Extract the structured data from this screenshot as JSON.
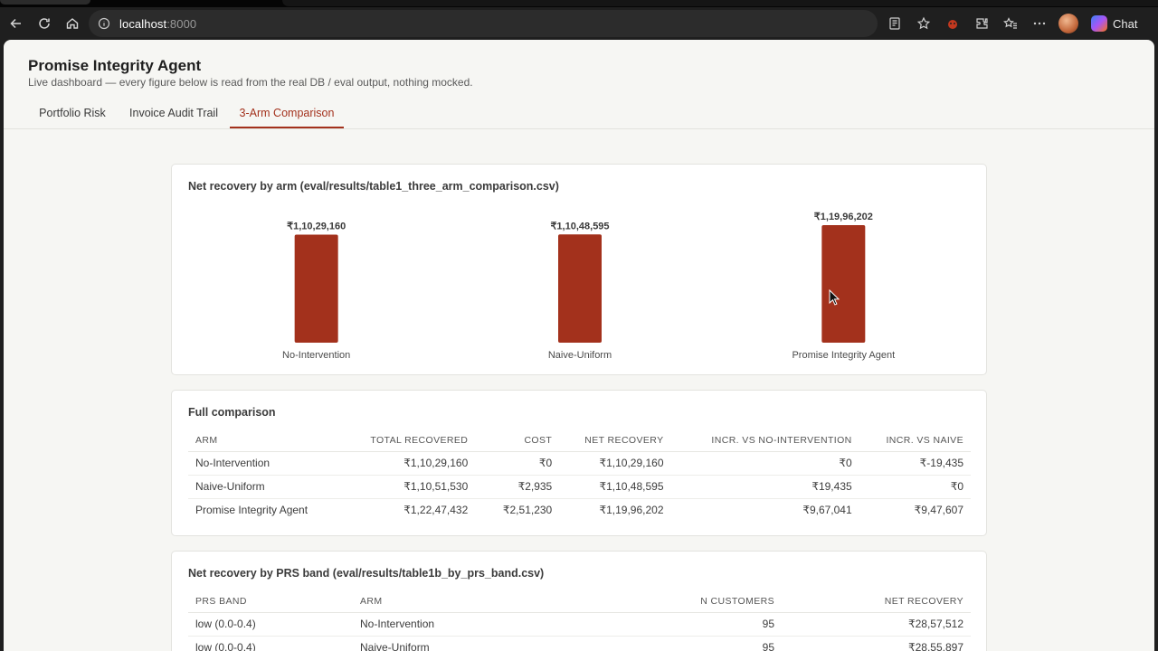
{
  "browser": {
    "url_host": "localhost",
    "url_port": ":8000",
    "chat_label": "Chat",
    "icons": [
      "back-icon",
      "reload-icon",
      "home-icon",
      "info-icon",
      "reader-icon",
      "favorite-star-icon",
      "extension-icon",
      "puzzle-icon",
      "favorites-icon",
      "more-icon"
    ]
  },
  "app": {
    "title": "Promise Integrity Agent",
    "subtitle": "Live dashboard — every figure below is read from the real DB / eval output, nothing mocked.",
    "tabs": [
      {
        "label": "Portfolio Risk"
      },
      {
        "label": "Invoice Audit Trail"
      },
      {
        "label": "3-Arm Comparison",
        "active": true
      }
    ]
  },
  "chart_data": {
    "type": "bar",
    "title": "Net recovery by arm (eval/results/table1_three_arm_comparison.csv)",
    "categories": [
      "No-Intervention",
      "Naive-Uniform",
      "Promise Integrity Agent"
    ],
    "values": [
      11029160,
      11048595,
      11996202
    ],
    "value_labels": [
      "₹1,10,29,160",
      "₹1,10,48,595",
      "₹1,19,96,202"
    ],
    "xlabel": "",
    "ylabel": "",
    "ylim": [
      0,
      11996202
    ],
    "grid": false,
    "bar_color": "#a3311c"
  },
  "comparison": {
    "title": "Full comparison",
    "headers": [
      "ARM",
      "TOTAL RECOVERED",
      "COST",
      "NET RECOVERY",
      "INCR. VS NO-INTERVENTION",
      "INCR. VS NAIVE"
    ],
    "rows": [
      [
        "No-Intervention",
        "₹1,10,29,160",
        "₹0",
        "₹1,10,29,160",
        "₹0",
        "₹-19,435"
      ],
      [
        "Naive-Uniform",
        "₹1,10,51,530",
        "₹2,935",
        "₹1,10,48,595",
        "₹19,435",
        "₹0"
      ],
      [
        "Promise Integrity Agent",
        "₹1,22,47,432",
        "₹2,51,230",
        "₹1,19,96,202",
        "₹9,67,041",
        "₹9,47,607"
      ]
    ]
  },
  "prs_band": {
    "title": "Net recovery by PRS band (eval/results/table1b_by_prs_band.csv)",
    "headers": [
      "PRS BAND",
      "ARM",
      "N CUSTOMERS",
      "NET RECOVERY"
    ],
    "rows": [
      [
        "low (0.0-0.4)",
        "No-Intervention",
        "95",
        "₹28,57,512"
      ],
      [
        "low (0.0-0.4)",
        "Naive-Uniform",
        "95",
        "₹28,55,897"
      ]
    ]
  }
}
